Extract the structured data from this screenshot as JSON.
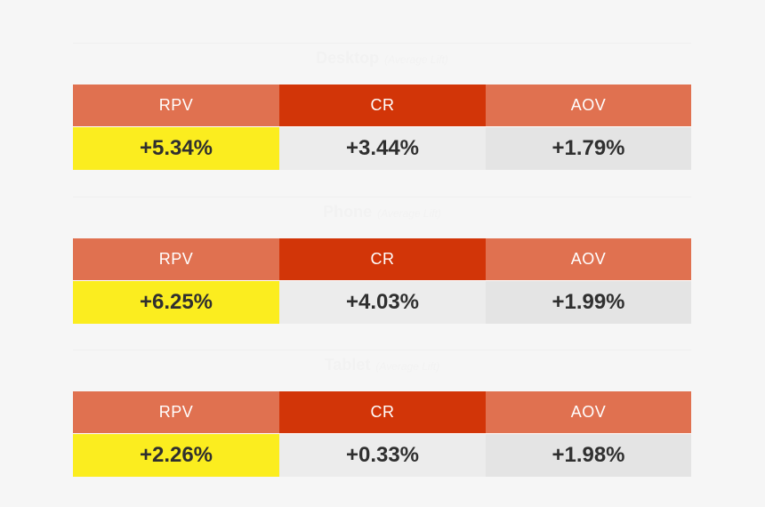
{
  "chart_data": [
    {
      "type": "table",
      "title": "Desktop",
      "subtitle": "(Average Lift)",
      "columns": [
        "RPV",
        "CR",
        "AOV"
      ],
      "values": [
        "+5.34%",
        "+3.44%",
        "+1.79%"
      ]
    },
    {
      "type": "table",
      "title": "Phone",
      "subtitle": "(Average Lift)",
      "columns": [
        "RPV",
        "CR",
        "AOV"
      ],
      "values": [
        "+6.25%",
        "+4.03%",
        "+1.99%"
      ]
    },
    {
      "type": "table",
      "title": "Tablet",
      "subtitle": "(Average Lift)",
      "columns": [
        "RPV",
        "CR",
        "AOV"
      ],
      "values": [
        "+2.26%",
        "+0.33%",
        "+1.98%"
      ]
    }
  ],
  "colors": {
    "header_primary": "#e07150",
    "header_accent": "#d23508",
    "highlight": "#fbed1f",
    "cell_light": "#ececec",
    "cell_mid": "#e4e4e4",
    "value_text": "#2f2f2f",
    "background": "#f6f6f6"
  }
}
